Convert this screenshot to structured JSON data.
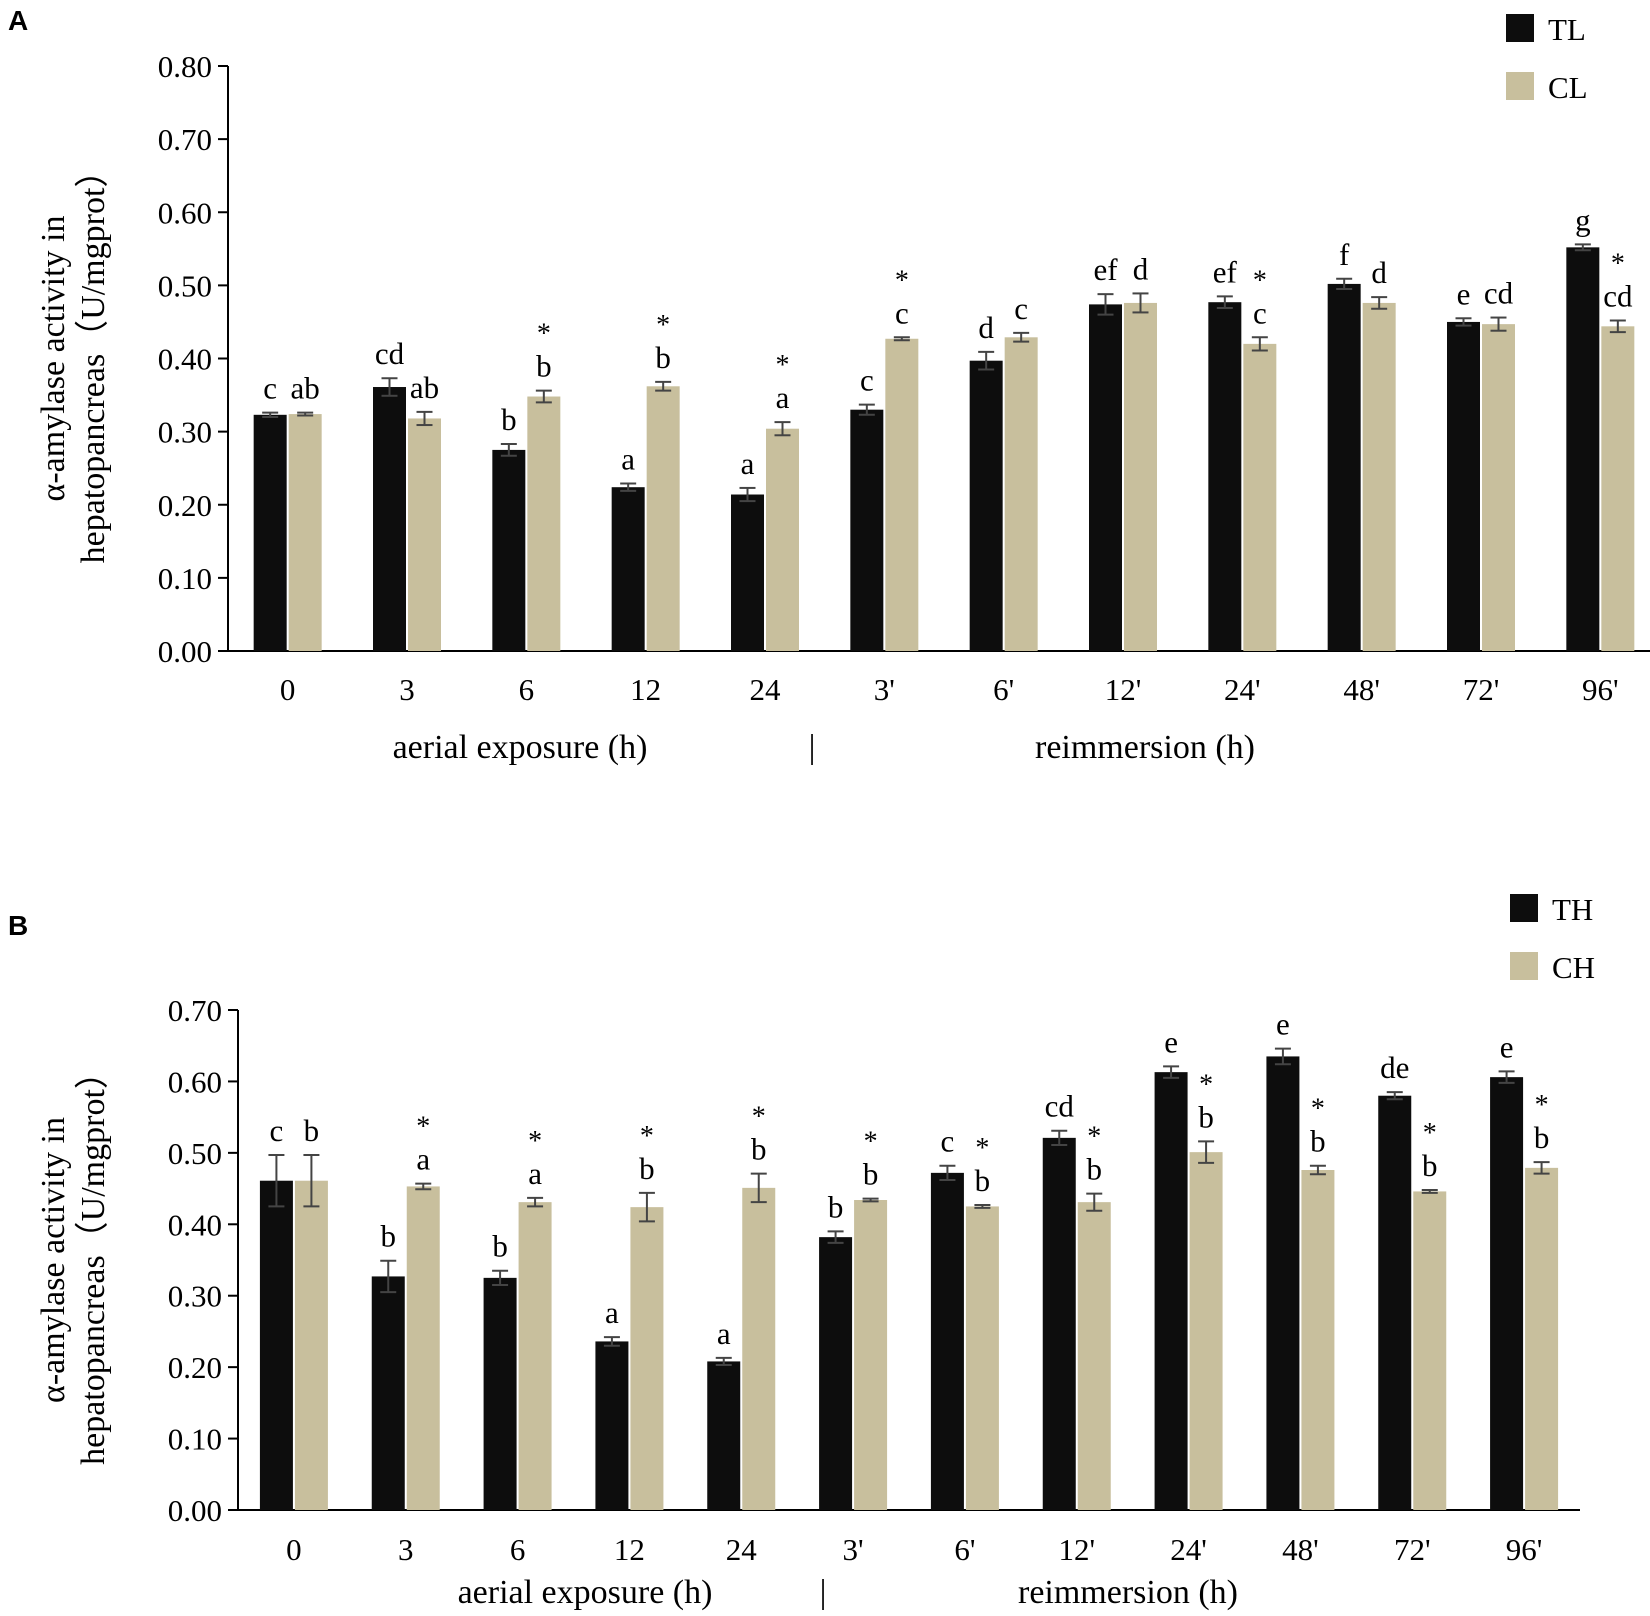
{
  "colors": {
    "series_a": "#0d0d0d",
    "series_b": "#c8bf9d",
    "axis": "#000000",
    "error": "#444444"
  },
  "chart_data": [
    {
      "panel_label": "A",
      "type": "bar",
      "ylabel_line1": "α-amylase activity in",
      "ylabel_line2": "hepatopancreas（U/mgprot）",
      "ylim": [
        0,
        0.8
      ],
      "yticks": [
        "0.00",
        "0.10",
        "0.20",
        "0.30",
        "0.40",
        "0.50",
        "0.60",
        "0.70",
        "0.80"
      ],
      "categories": [
        "0",
        "3",
        "6",
        "12",
        "24",
        "3'",
        "6'",
        "12'",
        "24'",
        "48'",
        "72'",
        "96'"
      ],
      "group_label_left": "aerial exposure (h)",
      "divider": "|",
      "group_label_right": "reimmersion (h)",
      "series": [
        {
          "name": "TL",
          "values": [
            0.323,
            0.361,
            0.275,
            0.224,
            0.214,
            0.33,
            0.397,
            0.474,
            0.477,
            0.502,
            0.45,
            0.552
          ],
          "errors": [
            0.003,
            0.012,
            0.008,
            0.005,
            0.009,
            0.007,
            0.012,
            0.014,
            0.008,
            0.007,
            0.005,
            0.004
          ],
          "letters": [
            "c",
            "cd",
            "b",
            "a",
            "a",
            "c",
            "d",
            "ef",
            "ef",
            "f",
            "e",
            "g"
          ],
          "stars": [
            "",
            "",
            "",
            "",
            "",
            "",
            "",
            "",
            "",
            "",
            "",
            ""
          ]
        },
        {
          "name": "CL",
          "values": [
            0.324,
            0.318,
            0.348,
            0.362,
            0.304,
            0.427,
            0.429,
            0.476,
            0.42,
            0.476,
            0.447,
            0.444
          ],
          "errors": [
            0.002,
            0.009,
            0.008,
            0.006,
            0.009,
            0.002,
            0.006,
            0.013,
            0.009,
            0.008,
            0.009,
            0.008
          ],
          "letters": [
            "ab",
            "ab",
            "b",
            "b",
            "a",
            "c",
            "c",
            "d",
            "c",
            "d",
            "cd",
            "cd"
          ],
          "stars": [
            "",
            "",
            "*",
            "*",
            "*",
            "*",
            "",
            "",
            "*",
            "",
            "",
            "*"
          ]
        }
      ]
    },
    {
      "panel_label": "B",
      "type": "bar",
      "ylabel_line1": "α-amylase activity in",
      "ylabel_line2": "hepatopancreas（U/mgprot）",
      "ylim": [
        0,
        0.7
      ],
      "yticks": [
        "0.00",
        "0.10",
        "0.20",
        "0.30",
        "0.40",
        "0.50",
        "0.60",
        "0.70"
      ],
      "categories": [
        "0",
        "3",
        "6",
        "12",
        "24",
        "3'",
        "6'",
        "12'",
        "24'",
        "48'",
        "72'",
        "96'"
      ],
      "group_label_left": "aerial exposure (h)",
      "divider": "|",
      "group_label_right": "reimmersion (h)",
      "series": [
        {
          "name": "TH",
          "values": [
            0.461,
            0.327,
            0.325,
            0.236,
            0.208,
            0.382,
            0.472,
            0.521,
            0.613,
            0.635,
            0.58,
            0.606
          ],
          "errors": [
            0.036,
            0.022,
            0.01,
            0.006,
            0.005,
            0.008,
            0.01,
            0.01,
            0.008,
            0.011,
            0.005,
            0.008
          ],
          "letters": [
            "c",
            "b",
            "b",
            "a",
            "a",
            "b",
            "c",
            "cd",
            "e",
            "e",
            "de",
            "e"
          ],
          "stars": [
            "",
            "",
            "",
            "",
            "",
            "",
            "",
            "",
            "",
            "",
            "",
            ""
          ]
        },
        {
          "name": "CH",
          "values": [
            0.461,
            0.453,
            0.431,
            0.424,
            0.451,
            0.434,
            0.425,
            0.431,
            0.501,
            0.476,
            0.446,
            0.479
          ],
          "errors": [
            0.036,
            0.004,
            0.006,
            0.02,
            0.02,
            0.002,
            0.002,
            0.012,
            0.015,
            0.006,
            0.002,
            0.008
          ],
          "letters": [
            "b",
            "a",
            "a",
            "b",
            "b",
            "b",
            "b",
            "b",
            "b",
            "b",
            "b",
            "b"
          ],
          "stars": [
            "",
            "*",
            "*",
            "*",
            "*",
            "*",
            "*",
            "*",
            "*",
            "*",
            "*",
            "*"
          ]
        }
      ]
    }
  ]
}
